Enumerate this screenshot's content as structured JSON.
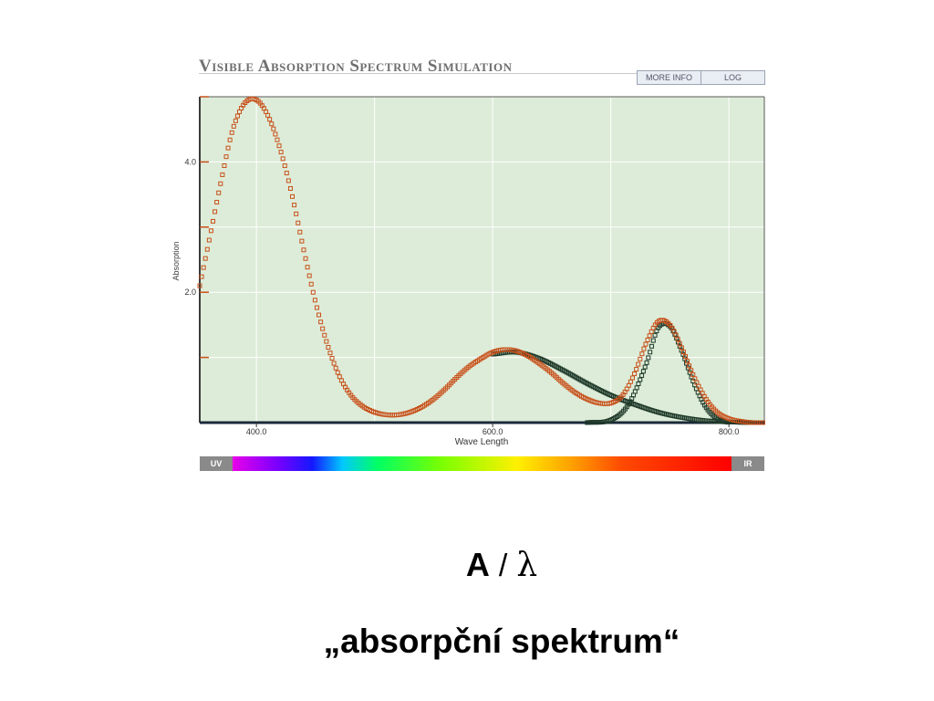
{
  "app": {
    "title": "Visible Absorption Spectrum Simulation",
    "buttons": {
      "more_info": "MORE INFO",
      "log": "LOG"
    }
  },
  "chart_data": {
    "type": "line",
    "xlabel": "Wave Length",
    "ylabel": "Absorption",
    "xlim": [
      352,
      830
    ],
    "ylim": [
      0,
      5
    ],
    "x_ticks": [
      400,
      600,
      800
    ],
    "x_tick_labels": [
      "400.0",
      "600.0",
      "800.0"
    ],
    "y_ticks": [
      2,
      4
    ],
    "y_tick_labels": [
      "2.0",
      "4.0"
    ],
    "grid": true,
    "background": "#ddecd8",
    "series": [
      {
        "marker": "square",
        "color": "#c8501a",
        "x": [
          352,
          360,
          370,
          380,
          390,
          400,
          410,
          420,
          430,
          440,
          450,
          460,
          470,
          480,
          490,
          500,
          510,
          520,
          530,
          540,
          550,
          560,
          570,
          580,
          590,
          600,
          610,
          620,
          630,
          640,
          650,
          660,
          670,
          680,
          690,
          700,
          710,
          720,
          730,
          740,
          750,
          760,
          770,
          780,
          790,
          800,
          810,
          820,
          830
        ],
        "y": [
          2.1,
          2.8,
          3.7,
          4.5,
          4.9,
          4.95,
          4.7,
          4.2,
          3.5,
          2.65,
          1.85,
          1.2,
          0.72,
          0.42,
          0.25,
          0.16,
          0.12,
          0.12,
          0.16,
          0.24,
          0.36,
          0.52,
          0.7,
          0.86,
          0.98,
          1.08,
          1.12,
          1.1,
          1.02,
          0.9,
          0.76,
          0.6,
          0.46,
          0.36,
          0.3,
          0.3,
          0.42,
          0.75,
          1.22,
          1.55,
          1.5,
          1.15,
          0.72,
          0.38,
          0.16,
          0.06,
          0.02,
          0.0,
          0.0
        ]
      },
      {
        "marker": "square",
        "color": "#1f3a2a",
        "x": [
          600,
          620,
          640,
          660,
          680,
          700,
          720,
          740,
          760,
          780,
          800,
          820
        ],
        "y": [
          1.05,
          1.08,
          0.98,
          0.8,
          0.6,
          0.42,
          0.28,
          0.16,
          0.08,
          0.03,
          0.01,
          0.0
        ]
      },
      {
        "marker": "square",
        "color": "#1f3a2a",
        "x": [
          680,
          700,
          715,
          730,
          740,
          750,
          760,
          770,
          780,
          790,
          800
        ],
        "y": [
          0.0,
          0.04,
          0.28,
          0.9,
          1.45,
          1.48,
          1.1,
          0.62,
          0.25,
          0.06,
          0.0
        ]
      }
    ]
  },
  "spectrum_bar": {
    "left_label": "UV",
    "right_label": "IR"
  },
  "formula": {
    "a": "A",
    "sep": "/",
    "lambda": "λ"
  },
  "caption": "„absorpční spektrum“"
}
